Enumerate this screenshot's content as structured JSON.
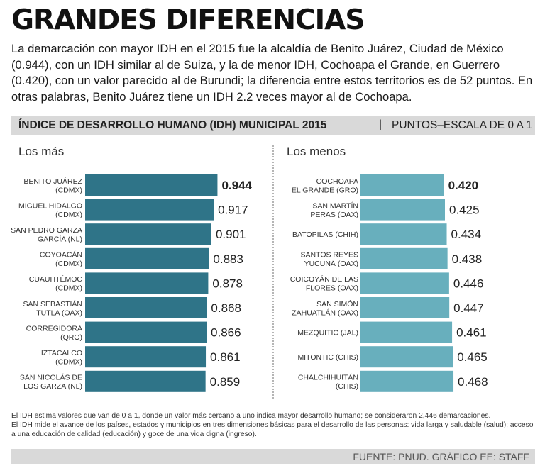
{
  "title": "GRANDES DIFERENCIAS",
  "intro": "La demarcación con mayor IDH en el 2015 fue la alcaldía de Benito Juárez, Ciudad de México (0.944), con un IDH similar al de Suiza, y la de menor IDH, Cochoapa el Grande, en Guerrero (0.420), con un valor parecido al de Burundi; la diferencia entre estos territorios es de 52 puntos. En otras palabras, Benito Juárez tiene un IDH 2.2 veces mayor al de Cochoapa.",
  "header": {
    "chart_title": "ÍNDICE DE DESARROLLO HUMANO (IDH) MUNICIPAL 2015",
    "separator": "|",
    "scale": "PUNTOS–ESCALA DE 0 A 1"
  },
  "colors": {
    "top_bar": "#2f7488",
    "bottom_bar": "#68afbd",
    "band": "#d9d9d9"
  },
  "chart_data": [
    {
      "type": "bar",
      "orientation": "horizontal",
      "title": "Los más",
      "categories": [
        [
          "BENITO JUÁREZ",
          "(CDMX)"
        ],
        [
          "MIGUEL HIDALGO",
          "(CDMX)"
        ],
        [
          "SAN PEDRO GARZA",
          "GARCÍA (NL)"
        ],
        [
          "COYOACÁN",
          "(CDMX)"
        ],
        [
          "CUAUHTÉMOC",
          "(CDMX)"
        ],
        [
          "SAN SEBASTIÁN",
          "TUTLA (OAX)"
        ],
        [
          "CORREGIDORA",
          "(QRO)"
        ],
        [
          "IZTACALCO",
          "(CDMX)"
        ],
        [
          "SAN NICOLÁS DE",
          "LOS GARZA (NL)"
        ]
      ],
      "values": [
        0.944,
        0.917,
        0.901,
        0.883,
        0.878,
        0.868,
        0.866,
        0.861,
        0.859
      ],
      "labels": [
        "0.944",
        "0.917",
        "0.901",
        "0.883",
        "0.878",
        "0.868",
        "0.866",
        "0.861",
        "0.859"
      ],
      "xlim": [
        0,
        1
      ]
    },
    {
      "type": "bar",
      "orientation": "horizontal",
      "title": "Los menos",
      "categories": [
        [
          "COCHOAPA",
          "EL GRANDE (GRO)"
        ],
        [
          "SAN MARTÍN",
          "PERAS (OAX)"
        ],
        [
          "BATOPILAS (CHIH)"
        ],
        [
          "SANTOS REYES",
          "YUCUNÁ (OAX)"
        ],
        [
          "COICOYÁN DE LAS",
          "FLORES (OAX)"
        ],
        [
          "SAN SIMÓN",
          "ZAHUATLÁN (OAX)"
        ],
        [
          "MEZQUITIC (JAL)"
        ],
        [
          "MITONTIC (CHIS)"
        ],
        [
          "CHALCHIHUITÁN",
          "(CHIS)"
        ]
      ],
      "values": [
        0.42,
        0.425,
        0.434,
        0.438,
        0.446,
        0.447,
        0.461,
        0.465,
        0.468
      ],
      "labels": [
        "0.420",
        "0.425",
        "0.434",
        "0.438",
        "0.446",
        "0.447",
        "0.461",
        "0.465",
        "0.468"
      ],
      "xlim": [
        0,
        1
      ]
    }
  ],
  "notes": [
    "El IDH estima valores que van de 0 a 1, donde un valor más cercano a uno indica mayor desarrollo humano; se consideraron 2,446 demarcaciones.",
    "El IDH mide el avance de los países, estados y municipios en tres dimensiones básicas para el desarrollo de las personas: vida larga y saludable (salud); acceso a una educación de calidad (educación) y goce de una vida digna (ingreso)."
  ],
  "source": "FUENTE: PNUD. GRÁFICO EE: STAFF"
}
